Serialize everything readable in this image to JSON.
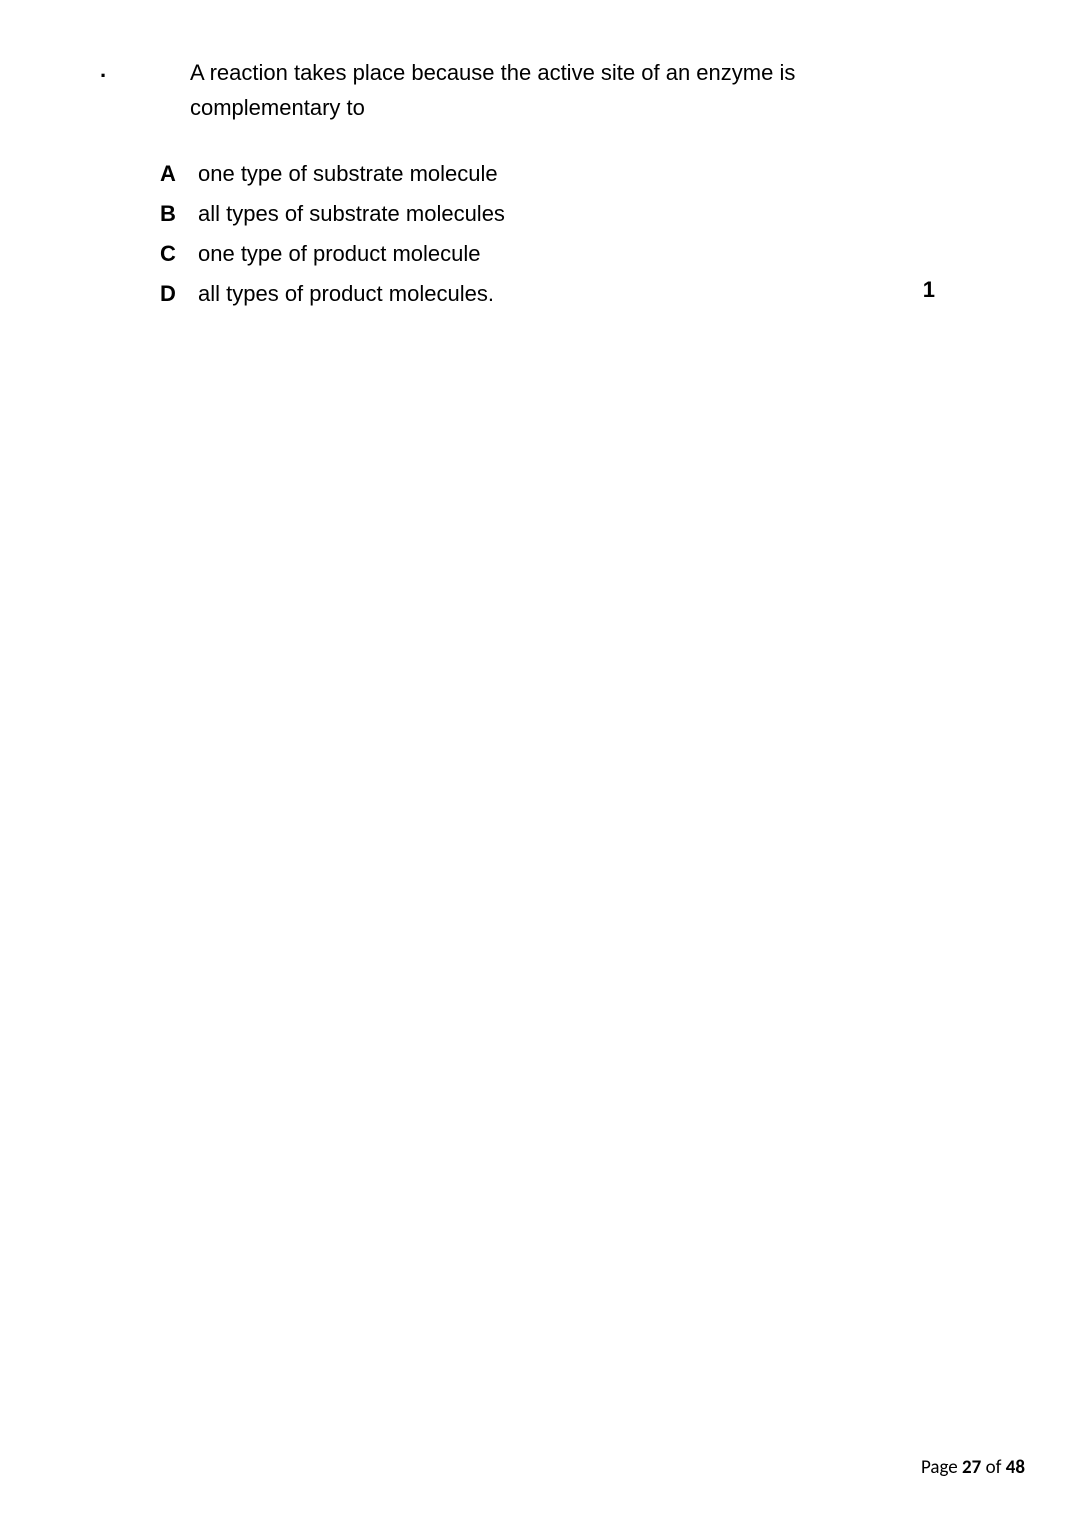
{
  "question": {
    "bullet": ".",
    "stem": "A reaction takes place because the active site of an enzyme is complementary to",
    "options": [
      {
        "letter": "A",
        "text": "one type of substrate molecule"
      },
      {
        "letter": "B",
        "text": "all types of substrate molecules"
      },
      {
        "letter": "C",
        "text": "one type of product molecule"
      },
      {
        "letter": "D",
        "text": "all types of product molecules."
      }
    ],
    "marks": "1"
  },
  "footer": {
    "prefix": "Page ",
    "current": "27",
    "separator": " of ",
    "total": "48"
  }
}
